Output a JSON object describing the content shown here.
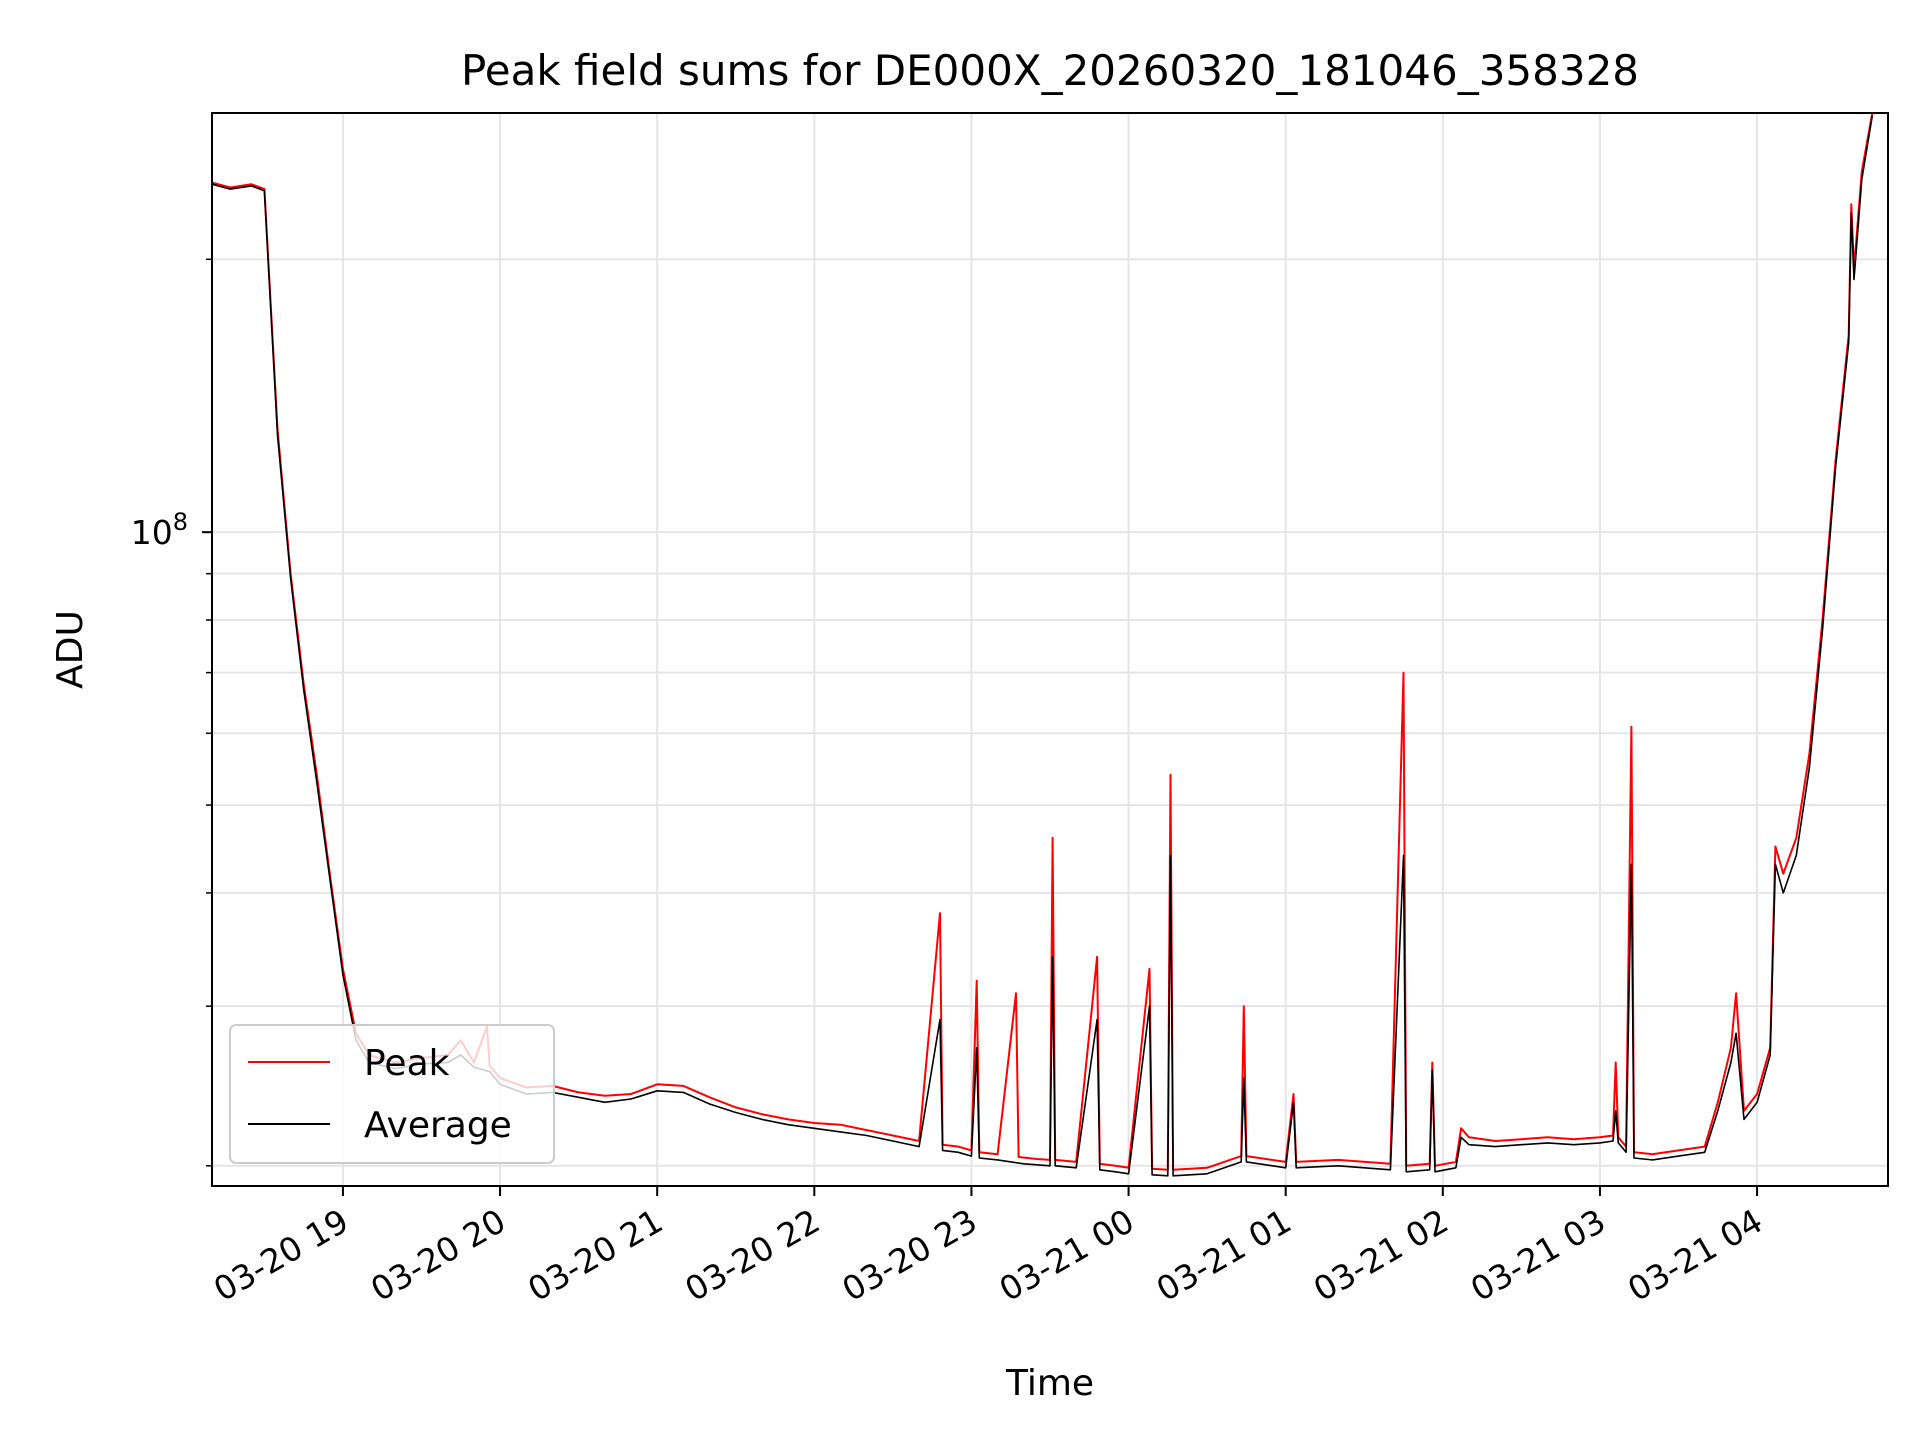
{
  "chart_data": {
    "type": "line",
    "title": "Peak field sums for DE000X_20260320_181046_358328",
    "xlabel": "Time",
    "ylabel": "ADU",
    "y_scale": "log",
    "grid": true,
    "legend_position": "lower-left",
    "xlim": [
      "2026-03-20T18:10",
      "2026-03-21T04:50"
    ],
    "ylim": [
      19000000,
      290000000
    ],
    "x_ticks": [
      {
        "t": "2026-03-20T19:00",
        "label": "03-20 19"
      },
      {
        "t": "2026-03-20T20:00",
        "label": "03-20 20"
      },
      {
        "t": "2026-03-20T21:00",
        "label": "03-20 21"
      },
      {
        "t": "2026-03-20T22:00",
        "label": "03-20 22"
      },
      {
        "t": "2026-03-20T23:00",
        "label": "03-20 23"
      },
      {
        "t": "2026-03-21T00:00",
        "label": "03-21 00"
      },
      {
        "t": "2026-03-21T01:00",
        "label": "03-21 01"
      },
      {
        "t": "2026-03-21T02:00",
        "label": "03-21 02"
      },
      {
        "t": "2026-03-21T03:00",
        "label": "03-21 03"
      },
      {
        "t": "2026-03-21T04:00",
        "label": "03-21 04"
      }
    ],
    "y_major_ticks": [
      {
        "value": 100000000,
        "label_base": "10",
        "label_exp": "8"
      }
    ],
    "y_minor_ticks": [
      20000000,
      30000000,
      40000000,
      50000000,
      60000000,
      70000000,
      80000000,
      90000000,
      200000000
    ],
    "series": [
      {
        "name": "Peak",
        "color": "#ff0000",
        "points": [
          [
            "2026-03-20T18:10",
            243000000
          ],
          [
            "2026-03-20T18:17",
            240000000
          ],
          [
            "2026-03-20T18:25",
            242000000
          ],
          [
            "2026-03-20T18:30",
            239000000
          ],
          [
            "2026-03-20T18:35",
            130000000
          ],
          [
            "2026-03-20T18:40",
            90000000
          ],
          [
            "2026-03-20T18:45",
            68000000
          ],
          [
            "2026-03-20T18:50",
            54000000
          ],
          [
            "2026-03-20T18:55",
            42000000
          ],
          [
            "2026-03-20T19:00",
            33000000
          ],
          [
            "2026-03-20T19:05",
            28000000
          ],
          [
            "2026-03-20T19:10",
            26500000
          ],
          [
            "2026-03-20T19:20",
            26000000
          ],
          [
            "2026-03-20T19:30",
            26300000
          ],
          [
            "2026-03-20T19:40",
            26500000
          ],
          [
            "2026-03-20T19:45",
            27500000
          ],
          [
            "2026-03-20T19:50",
            26000000
          ],
          [
            "2026-03-20T19:55",
            28500000
          ],
          [
            "2026-03-20T19:56",
            25800000
          ],
          [
            "2026-03-20T20:00",
            25000000
          ],
          [
            "2026-03-20T20:10",
            24400000
          ],
          [
            "2026-03-20T20:20",
            24500000
          ],
          [
            "2026-03-20T20:30",
            24100000
          ],
          [
            "2026-03-20T20:40",
            23900000
          ],
          [
            "2026-03-20T20:50",
            24000000
          ],
          [
            "2026-03-20T21:00",
            24600000
          ],
          [
            "2026-03-20T21:10",
            24500000
          ],
          [
            "2026-03-20T21:20",
            23800000
          ],
          [
            "2026-03-20T21:30",
            23200000
          ],
          [
            "2026-03-20T21:40",
            22800000
          ],
          [
            "2026-03-20T21:50",
            22500000
          ],
          [
            "2026-03-20T22:00",
            22300000
          ],
          [
            "2026-03-20T22:10",
            22200000
          ],
          [
            "2026-03-20T22:20",
            21900000
          ],
          [
            "2026-03-20T22:30",
            21600000
          ],
          [
            "2026-03-20T22:40",
            21300000
          ],
          [
            "2026-03-20T22:48",
            38000000
          ],
          [
            "2026-03-20T22:49",
            21100000
          ],
          [
            "2026-03-20T22:55",
            21000000
          ],
          [
            "2026-03-20T23:00",
            20800000
          ],
          [
            "2026-03-20T23:02",
            32000000
          ],
          [
            "2026-03-20T23:03",
            20700000
          ],
          [
            "2026-03-20T23:10",
            20600000
          ],
          [
            "2026-03-20T23:17",
            31000000
          ],
          [
            "2026-03-20T23:18",
            20450000
          ],
          [
            "2026-03-20T23:25",
            20350000
          ],
          [
            "2026-03-20T23:30",
            20300000
          ],
          [
            "2026-03-20T23:31",
            46000000
          ],
          [
            "2026-03-20T23:32",
            20300000
          ],
          [
            "2026-03-20T23:40",
            20200000
          ],
          [
            "2026-03-20T23:48",
            34000000
          ],
          [
            "2026-03-20T23:49",
            20100000
          ],
          [
            "2026-03-20T23:55",
            20000000
          ],
          [
            "2026-03-21T00:00",
            19900000
          ],
          [
            "2026-03-21T00:08",
            33000000
          ],
          [
            "2026-03-21T00:09",
            19850000
          ],
          [
            "2026-03-21T00:15",
            19800000
          ],
          [
            "2026-03-21T00:16",
            54000000
          ],
          [
            "2026-03-21T00:17",
            19800000
          ],
          [
            "2026-03-21T00:30",
            19900000
          ],
          [
            "2026-03-21T00:43",
            20500000
          ],
          [
            "2026-03-21T00:44",
            30000000
          ],
          [
            "2026-03-21T00:45",
            20500000
          ],
          [
            "2026-03-21T01:00",
            20200000
          ],
          [
            "2026-03-21T01:03",
            24000000
          ],
          [
            "2026-03-21T01:04",
            20200000
          ],
          [
            "2026-03-21T01:20",
            20300000
          ],
          [
            "2026-03-21T01:40",
            20100000
          ],
          [
            "2026-03-21T01:45",
            70000000
          ],
          [
            "2026-03-21T01:46",
            20000000
          ],
          [
            "2026-03-21T01:55",
            20100000
          ],
          [
            "2026-03-21T01:56",
            26000000
          ],
          [
            "2026-03-21T01:57",
            20000000
          ],
          [
            "2026-03-21T02:05",
            20200000
          ],
          [
            "2026-03-21T02:07",
            22000000
          ],
          [
            "2026-03-21T02:10",
            21500000
          ],
          [
            "2026-03-21T02:20",
            21300000
          ],
          [
            "2026-03-21T02:30",
            21400000
          ],
          [
            "2026-03-21T02:40",
            21500000
          ],
          [
            "2026-03-21T02:50",
            21400000
          ],
          [
            "2026-03-21T03:00",
            21500000
          ],
          [
            "2026-03-21T03:05",
            21600000
          ],
          [
            "2026-03-21T03:06",
            26000000
          ],
          [
            "2026-03-21T03:07",
            21500000
          ],
          [
            "2026-03-21T03:10",
            21000000
          ],
          [
            "2026-03-21T03:12",
            61000000
          ],
          [
            "2026-03-21T03:13",
            20700000
          ],
          [
            "2026-03-21T03:20",
            20600000
          ],
          [
            "2026-03-21T03:30",
            20800000
          ],
          [
            "2026-03-21T03:40",
            21000000
          ],
          [
            "2026-03-21T03:45",
            23500000
          ],
          [
            "2026-03-21T03:50",
            27000000
          ],
          [
            "2026-03-21T03:52",
            31000000
          ],
          [
            "2026-03-21T03:55",
            23000000
          ],
          [
            "2026-03-21T04:00",
            24000000
          ],
          [
            "2026-03-21T04:05",
            27000000
          ],
          [
            "2026-03-21T04:07",
            45000000
          ],
          [
            "2026-03-21T04:10",
            42000000
          ],
          [
            "2026-03-21T04:15",
            46000000
          ],
          [
            "2026-03-21T04:20",
            57000000
          ],
          [
            "2026-03-21T04:25",
            80000000
          ],
          [
            "2026-03-21T04:30",
            120000000
          ],
          [
            "2026-03-21T04:35",
            165000000
          ],
          [
            "2026-03-21T04:36",
            230000000
          ],
          [
            "2026-03-21T04:37",
            195000000
          ],
          [
            "2026-03-21T04:40",
            250000000
          ],
          [
            "2026-03-21T04:44",
            290000000
          ]
        ]
      },
      {
        "name": "Average",
        "color": "#000000",
        "points": [
          [
            "2026-03-20T18:10",
            242000000
          ],
          [
            "2026-03-20T18:17",
            239000000
          ],
          [
            "2026-03-20T18:25",
            241000000
          ],
          [
            "2026-03-20T18:30",
            238000000
          ],
          [
            "2026-03-20T18:35",
            128000000
          ],
          [
            "2026-03-20T18:40",
            89000000
          ],
          [
            "2026-03-20T18:45",
            67000000
          ],
          [
            "2026-03-20T18:50",
            53000000
          ],
          [
            "2026-03-20T18:55",
            41500000
          ],
          [
            "2026-03-20T19:00",
            32500000
          ],
          [
            "2026-03-20T19:05",
            27500000
          ],
          [
            "2026-03-20T19:10",
            26000000
          ],
          [
            "2026-03-20T19:20",
            25600000
          ],
          [
            "2026-03-20T19:30",
            25900000
          ],
          [
            "2026-03-20T19:40",
            26000000
          ],
          [
            "2026-03-20T19:45",
            26500000
          ],
          [
            "2026-03-20T19:50",
            25700000
          ],
          [
            "2026-03-20T19:56",
            25400000
          ],
          [
            "2026-03-20T20:00",
            24600000
          ],
          [
            "2026-03-20T20:10",
            24000000
          ],
          [
            "2026-03-20T20:20",
            24100000
          ],
          [
            "2026-03-20T20:30",
            23800000
          ],
          [
            "2026-03-20T20:40",
            23500000
          ],
          [
            "2026-03-20T20:50",
            23700000
          ],
          [
            "2026-03-20T21:00",
            24200000
          ],
          [
            "2026-03-20T21:10",
            24100000
          ],
          [
            "2026-03-20T21:20",
            23400000
          ],
          [
            "2026-03-20T21:30",
            22900000
          ],
          [
            "2026-03-20T21:40",
            22500000
          ],
          [
            "2026-03-20T21:50",
            22200000
          ],
          [
            "2026-03-20T22:00",
            22000000
          ],
          [
            "2026-03-20T22:10",
            21800000
          ],
          [
            "2026-03-20T22:20",
            21600000
          ],
          [
            "2026-03-20T22:30",
            21300000
          ],
          [
            "2026-03-20T22:40",
            21000000
          ],
          [
            "2026-03-20T22:48",
            29000000
          ],
          [
            "2026-03-20T22:49",
            20800000
          ],
          [
            "2026-03-20T22:55",
            20700000
          ],
          [
            "2026-03-20T23:00",
            20500000
          ],
          [
            "2026-03-20T23:02",
            27000000
          ],
          [
            "2026-03-20T23:03",
            20400000
          ],
          [
            "2026-03-20T23:10",
            20300000
          ],
          [
            "2026-03-20T23:20",
            20100000
          ],
          [
            "2026-03-20T23:30",
            20000000
          ],
          [
            "2026-03-20T23:31",
            34000000
          ],
          [
            "2026-03-20T23:32",
            20000000
          ],
          [
            "2026-03-20T23:40",
            19900000
          ],
          [
            "2026-03-20T23:48",
            29000000
          ],
          [
            "2026-03-20T23:49",
            19800000
          ],
          [
            "2026-03-20T23:55",
            19700000
          ],
          [
            "2026-03-21T00:00",
            19600000
          ],
          [
            "2026-03-21T00:08",
            30000000
          ],
          [
            "2026-03-21T00:09",
            19550000
          ],
          [
            "2026-03-21T00:15",
            19500000
          ],
          [
            "2026-03-21T00:16",
            44000000
          ],
          [
            "2026-03-21T00:17",
            19500000
          ],
          [
            "2026-03-21T00:30",
            19600000
          ],
          [
            "2026-03-21T00:43",
            20200000
          ],
          [
            "2026-03-21T00:44",
            25000000
          ],
          [
            "2026-03-21T00:45",
            20200000
          ],
          [
            "2026-03-21T01:00",
            19900000
          ],
          [
            "2026-03-21T01:03",
            23500000
          ],
          [
            "2026-03-21T01:04",
            19900000
          ],
          [
            "2026-03-21T01:20",
            20000000
          ],
          [
            "2026-03-21T01:40",
            19800000
          ],
          [
            "2026-03-21T01:45",
            44000000
          ],
          [
            "2026-03-21T01:46",
            19700000
          ],
          [
            "2026-03-21T01:55",
            19800000
          ],
          [
            "2026-03-21T01:56",
            25500000
          ],
          [
            "2026-03-21T01:57",
            19700000
          ],
          [
            "2026-03-21T02:05",
            19900000
          ],
          [
            "2026-03-21T02:07",
            21500000
          ],
          [
            "2026-03-21T02:10",
            21100000
          ],
          [
            "2026-03-21T02:20",
            21000000
          ],
          [
            "2026-03-21T02:30",
            21100000
          ],
          [
            "2026-03-21T02:40",
            21200000
          ],
          [
            "2026-03-21T02:50",
            21100000
          ],
          [
            "2026-03-21T03:00",
            21200000
          ],
          [
            "2026-03-21T03:05",
            21300000
          ],
          [
            "2026-03-21T03:06",
            23000000
          ],
          [
            "2026-03-21T03:07",
            21200000
          ],
          [
            "2026-03-21T03:10",
            20700000
          ],
          [
            "2026-03-21T03:12",
            43000000
          ],
          [
            "2026-03-21T03:13",
            20400000
          ],
          [
            "2026-03-21T03:20",
            20300000
          ],
          [
            "2026-03-21T03:30",
            20500000
          ],
          [
            "2026-03-21T03:40",
            20700000
          ],
          [
            "2026-03-21T03:45",
            23000000
          ],
          [
            "2026-03-21T03:50",
            26000000
          ],
          [
            "2026-03-21T03:52",
            28000000
          ],
          [
            "2026-03-21T03:55",
            22500000
          ],
          [
            "2026-03-21T04:00",
            23500000
          ],
          [
            "2026-03-21T04:05",
            26500000
          ],
          [
            "2026-03-21T04:07",
            43000000
          ],
          [
            "2026-03-21T04:10",
            40000000
          ],
          [
            "2026-03-21T04:15",
            44000000
          ],
          [
            "2026-03-21T04:20",
            55000000
          ],
          [
            "2026-03-21T04:25",
            78000000
          ],
          [
            "2026-03-21T04:30",
            118000000
          ],
          [
            "2026-03-21T04:35",
            162000000
          ],
          [
            "2026-03-21T04:36",
            225000000
          ],
          [
            "2026-03-21T04:37",
            190000000
          ],
          [
            "2026-03-21T04:40",
            245000000
          ],
          [
            "2026-03-21T04:44",
            288000000
          ]
        ]
      }
    ]
  }
}
